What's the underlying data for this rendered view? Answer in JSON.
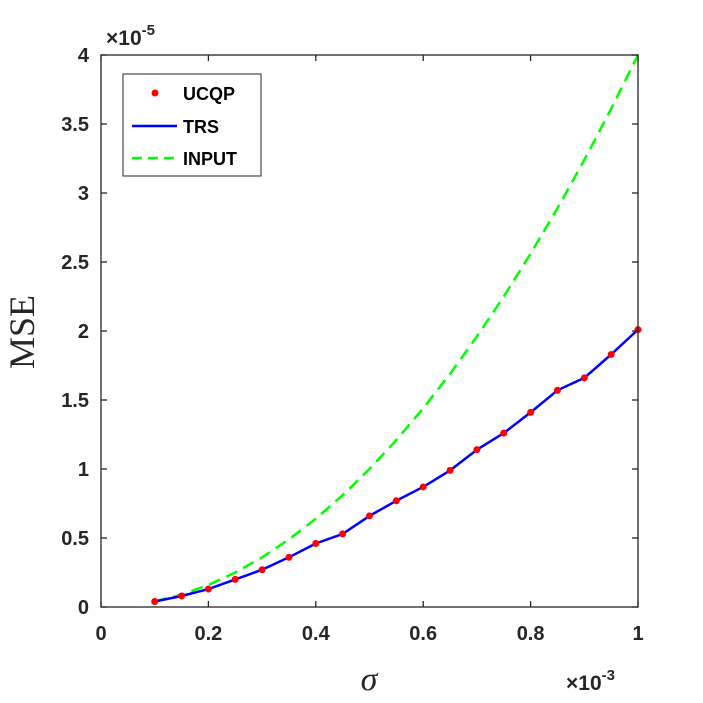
{
  "chart_data": {
    "type": "line",
    "xlabel": "σ",
    "ylabel": "MSE",
    "x_exponent_label": "×10",
    "x_exponent_power": "-3",
    "y_exponent_label": "×10",
    "y_exponent_power": "-5",
    "xlim": [
      0,
      1
    ],
    "ylim": [
      0,
      4
    ],
    "x_ticks": [
      "0",
      "0.2",
      "0.4",
      "0.6",
      "0.8",
      "1"
    ],
    "y_ticks": [
      "0",
      "0.5",
      "1",
      "1.5",
      "2",
      "2.5",
      "3",
      "3.5",
      "4"
    ],
    "grid": false,
    "legend_position": "top-left",
    "x": [
      0.1,
      0.15,
      0.2,
      0.25,
      0.3,
      0.35,
      0.4,
      0.45,
      0.5,
      0.55,
      0.6,
      0.65,
      0.7,
      0.75,
      0.8,
      0.85,
      0.9,
      0.95,
      1.0
    ],
    "series": [
      {
        "name": "UCQP",
        "style": "markers",
        "color": "#ff0000",
        "values": [
          0.04,
          0.08,
          0.13,
          0.2,
          0.27,
          0.36,
          0.46,
          0.53,
          0.66,
          0.77,
          0.87,
          0.99,
          1.14,
          1.26,
          1.41,
          1.57,
          1.66,
          1.83,
          2.01
        ]
      },
      {
        "name": "TRS",
        "style": "solid",
        "color": "#0000ff",
        "values": [
          0.04,
          0.08,
          0.13,
          0.2,
          0.27,
          0.36,
          0.46,
          0.53,
          0.66,
          0.77,
          0.87,
          0.99,
          1.14,
          1.26,
          1.41,
          1.57,
          1.66,
          1.83,
          2.01
        ]
      },
      {
        "name": "INPUT",
        "style": "dashed",
        "color": "#00ff00",
        "values": [
          0.04,
          0.09,
          0.16,
          0.25,
          0.36,
          0.49,
          0.64,
          0.81,
          1.0,
          1.21,
          1.44,
          1.69,
          1.96,
          2.25,
          2.56,
          2.89,
          3.24,
          3.61,
          4.0
        ]
      }
    ]
  }
}
